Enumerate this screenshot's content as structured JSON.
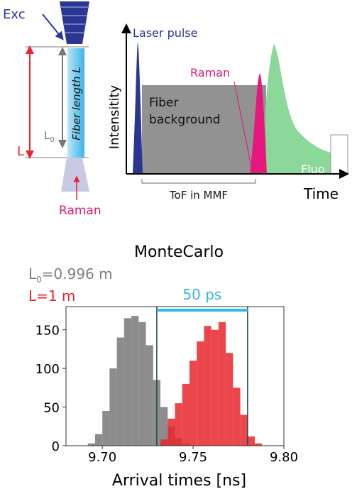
{
  "diagram": {
    "exc": "Exc",
    "fiber_length": "Fiber length L",
    "length_l": "L",
    "l0_label": {
      "text": "L",
      "sub": "0"
    },
    "raman_below": "Raman",
    "laser_pulse": "Laser pulse",
    "raman_peak": "Raman",
    "fiber_background": [
      "Fiber",
      "background"
    ],
    "fluo": "Fluo",
    "y_label": "Intensitity",
    "x_label": "Time",
    "tof": "ToF in MMF"
  },
  "chart_data": {
    "type": "histogram",
    "title": "MonteCarlo",
    "annotations": [
      {
        "text": "L",
        "sub": "0",
        "rest": "=0.996 m",
        "color": "#808080"
      },
      {
        "text": "L=1 m",
        "color": "#e8262b"
      }
    ],
    "x_label": "Arrival times [ns]",
    "xlim": [
      9.68,
      9.8
    ],
    "xticks": [
      {
        "value": 9.7,
        "label": "9.70"
      },
      {
        "value": 9.75,
        "label": "9.75"
      },
      {
        "value": 9.8,
        "label": "9.80"
      }
    ],
    "ylim": [
      0,
      180
    ],
    "yticks": [
      0,
      50,
      100,
      150
    ],
    "span": {
      "values": [
        9.73,
        9.78
      ],
      "label": "50 ps",
      "color": "#35b6e6",
      "line_color": "#1d4a4a"
    },
    "series": [
      {
        "color": "#8c8c8c",
        "bins": [
          9.692,
          9.696,
          9.7,
          9.704,
          9.708,
          9.712,
          9.716,
          9.72,
          9.724,
          9.728,
          9.732,
          9.736,
          9.74,
          9.744,
          9.748
        ],
        "values": [
          3,
          15,
          45,
          100,
          140,
          165,
          168,
          160,
          130,
          85,
          50,
          25,
          10,
          3
        ]
      },
      {
        "color": "#e8262b",
        "bins": [
          9.732,
          9.736,
          9.74,
          9.744,
          9.748,
          9.752,
          9.756,
          9.76,
          9.764,
          9.768,
          9.772,
          9.776,
          9.78,
          9.784,
          9.788
        ],
        "values": [
          8,
          35,
          55,
          80,
          110,
          135,
          155,
          150,
          160,
          120,
          75,
          40,
          12,
          3
        ]
      }
    ]
  }
}
